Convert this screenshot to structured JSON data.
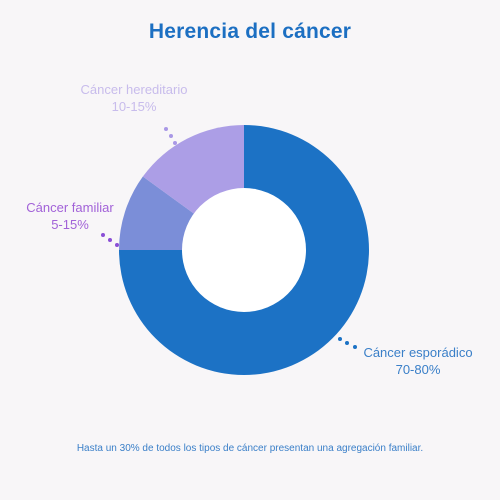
{
  "title": "Herencia del cáncer",
  "footnote": "Hasta un 30% de todos los tipos de cáncer presentan una agregación familiar.",
  "colors": {
    "title": "#1c6fc2",
    "footnote": "#3a7fc8",
    "background": "#f8f6f8",
    "hole": "#ffffff"
  },
  "chart_data": {
    "type": "pie",
    "donut": true,
    "slices": [
      {
        "name": "Cáncer esporádico",
        "range_label": "70-80%",
        "value": 75,
        "color": "#1c72c5",
        "label_color": "#3a7fc8",
        "dot_color": "#1c72c5"
      },
      {
        "name": "Cáncer familiar",
        "range_label": "5-15%",
        "value": 10,
        "color": "#7b8ed8",
        "label_color": "#a262d8",
        "dot_color": "#8a4fd6"
      },
      {
        "name": "Cáncer hereditario",
        "range_label": "10-15%",
        "value": 15,
        "color": "#ac9ee6",
        "label_color": "#c8bcec",
        "dot_color": "#a998e6"
      }
    ]
  }
}
